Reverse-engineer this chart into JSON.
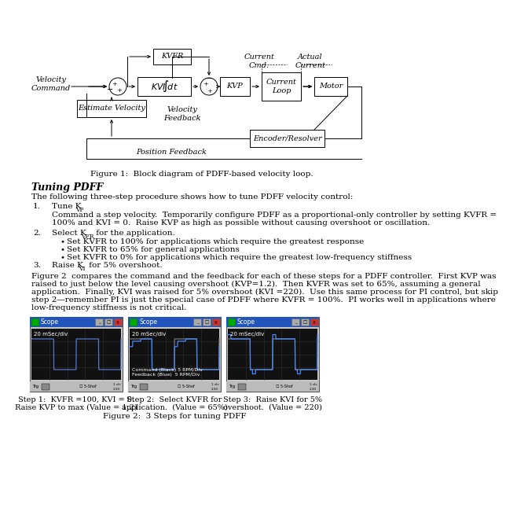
{
  "bg_color": "#ffffff",
  "figure_caption1": "Figure 1:  Block diagram of PDFF-based velocity loop.",
  "section_title": "Tuning PDFF",
  "para1": "The following three-step procedure shows how to tune PDFF velocity control:",
  "step1_num": "1.",
  "step1_title": "Tune KVP",
  "step1_body1": "Command a step velocity.  Temporarily configure PDFF as a proportional-only controller by setting KVFR =",
  "step1_body2": "100% and KVI = 0.  Raise KVP as high as possible without causing overshoot or oscillation.",
  "step2_num": "2.",
  "step2_title": "Select KVFR for the application.",
  "bullet1": "Set KVFR to 100% for applications which require the greatest response",
  "bullet2": "Set KVFR to 65% for general applications",
  "bullet3": "Set KVFR to 0% for applications which require the greatest low-frequency stiffness",
  "step3_num": "3.",
  "step3_title": "Raise KVI for 5% overshoot.",
  "para2_line1": "Figure 2  compares the command and the feedback for each of these steps for a PDFF controller.  First KVP was",
  "para2_line2": "raised to just below the level causing overshoot (KVP=1.2).  Then KVFR was set to 65%, assuming a general",
  "para2_line3": "application.  Finally, KVI was raised for 5% overshoot (KVI =220).  Use this same process for PI control, but skip",
  "para2_line4": "step 2—remember PI is just the special case of PDFF where KVFR = 100%.  PI works well in applications where",
  "para2_line5": "low-frequency stiffness is not critical.",
  "cap2_s1_line1": "Step 1:  KVFR =100, KVI = 0.",
  "cap2_s1_line2": "Raise KVP to max (Value = 1.2)",
  "cap2_s2_line1": "Step 2:  Select KVFR for",
  "cap2_s2_line2": "application.  (Value = 65%)",
  "cap2_s3_line1": "Step 3:  Raise KVI for 5%",
  "cap2_s3_line2": "overshoot.  (Value = 220)",
  "figure_caption2": "Figure 2:  3 Steps for tuning PDFF",
  "scope_time_label": "20 mSec/div",
  "scope_cmd_fb_label": "Command (Black) 5 RPM/Div\nFeedback (Blue)  5 RPM/Div"
}
